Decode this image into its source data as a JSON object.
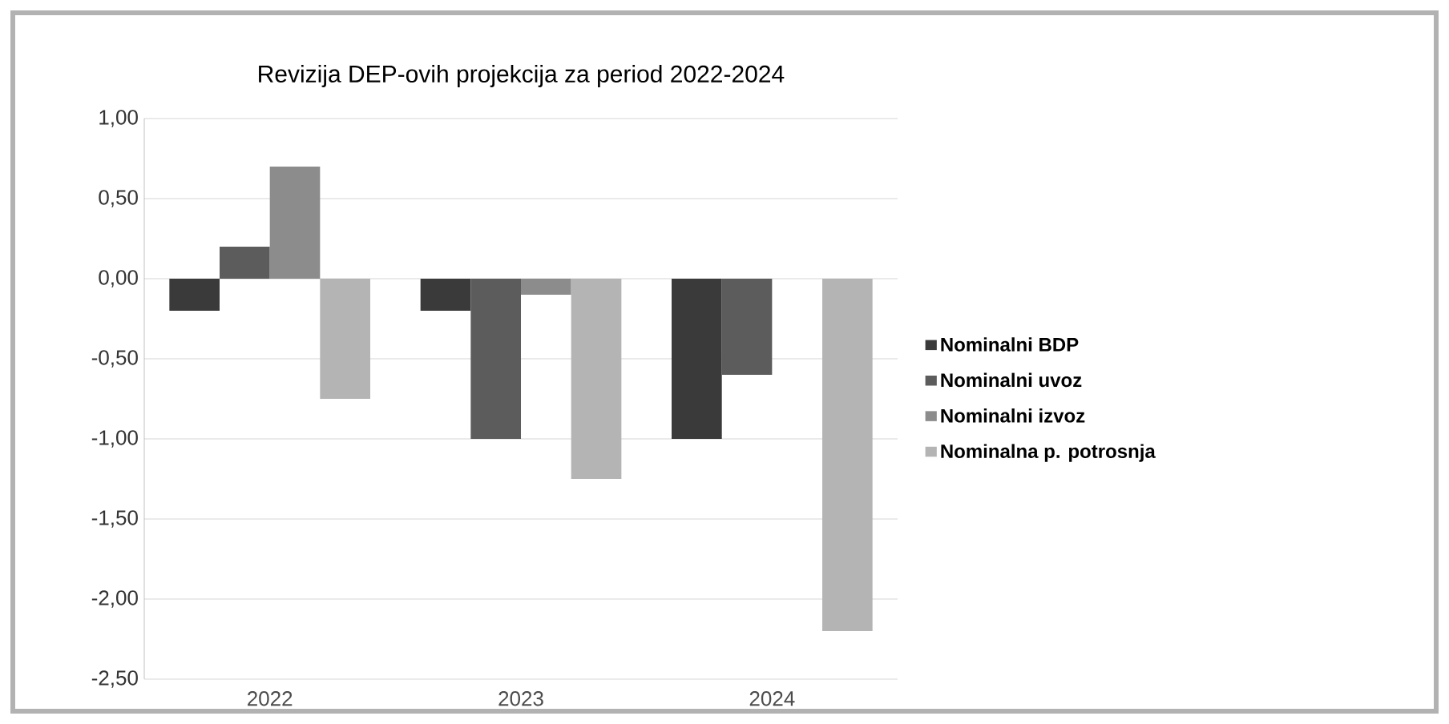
{
  "chart_data": {
    "type": "bar",
    "title": "Revizija DEP-ovih projekcija za  period 2022-2024",
    "categories": [
      "2022",
      "2023",
      "2024"
    ],
    "series": [
      {
        "name": "Nominalni BDP",
        "color": "#3a3a3a",
        "values": [
          -0.2,
          -0.2,
          -1.0
        ]
      },
      {
        "name": "Nominalni uvoz",
        "color": "#5c5c5c",
        "values": [
          0.2,
          -1.0,
          -0.6
        ]
      },
      {
        "name": "Nominalni izvoz",
        "color": "#8c8c8c",
        "values": [
          0.7,
          -0.1,
          0
        ]
      },
      {
        "name": "Nominalna p. potrosnja",
        "color": "#b4b4b4",
        "values": [
          -0.75,
          -1.25,
          -2.2
        ]
      }
    ],
    "ylim": [
      -2.5,
      1.0
    ],
    "yticks": [
      {
        "value": -2.5,
        "label": "-2,50"
      },
      {
        "value": -2.0,
        "label": "-2,00"
      },
      {
        "value": -1.5,
        "label": "-1,50"
      },
      {
        "value": -1.0,
        "label": "-1,00"
      },
      {
        "value": -0.5,
        "label": "-0,50"
      },
      {
        "value": 0,
        "label": "0,00"
      },
      {
        "value": 0.5,
        "label": "0,50"
      },
      {
        "value": 1.0,
        "label": "1,00"
      }
    ],
    "grid": "y",
    "legend": "right"
  }
}
